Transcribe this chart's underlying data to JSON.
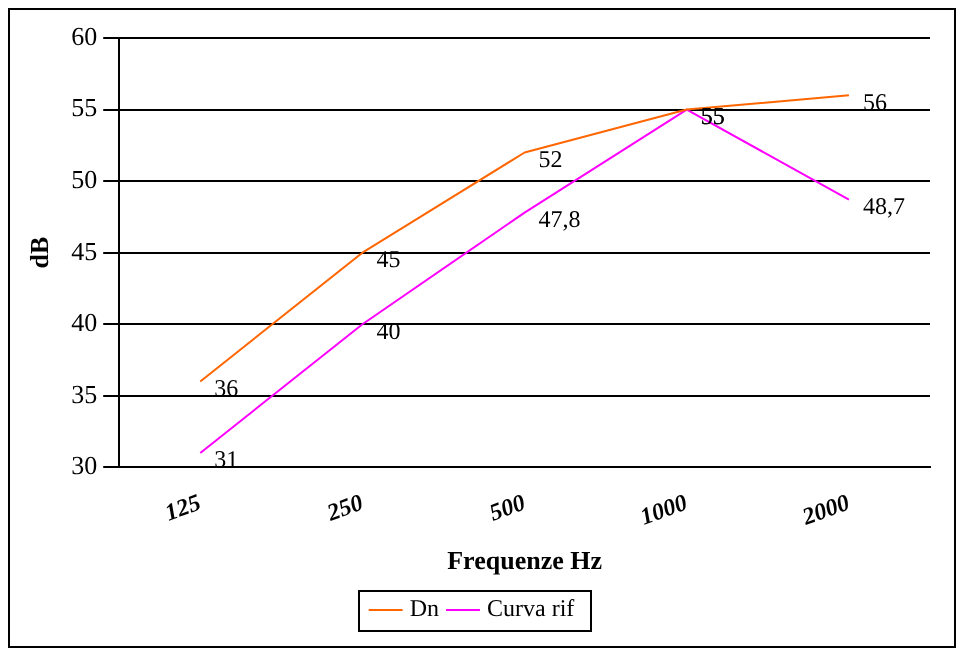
{
  "chart_data": {
    "type": "line",
    "xlabel": "Frequenze Hz",
    "ylabel": "dB",
    "categories": [
      "125",
      "250",
      "500",
      "1000",
      "2000"
    ],
    "series": [
      {
        "name": "Dn",
        "color": "#ff6600",
        "values": [
          36,
          45,
          52,
          55,
          56
        ],
        "value_labels": [
          "36",
          "45",
          "52",
          "55",
          "56"
        ]
      },
      {
        "name": "Curva rif",
        "color": "#ff00ff",
        "values": [
          31,
          40,
          47.8,
          55,
          48.7
        ],
        "value_labels": [
          "31",
          "40",
          "47,8",
          "55",
          "48,7"
        ]
      }
    ],
    "ylim": [
      30,
      60
    ],
    "yticks": [
      30,
      35,
      40,
      45,
      50,
      55,
      60
    ],
    "grid": "y",
    "legend": "bottom",
    "marker": "none",
    "line_style": "solid"
  }
}
